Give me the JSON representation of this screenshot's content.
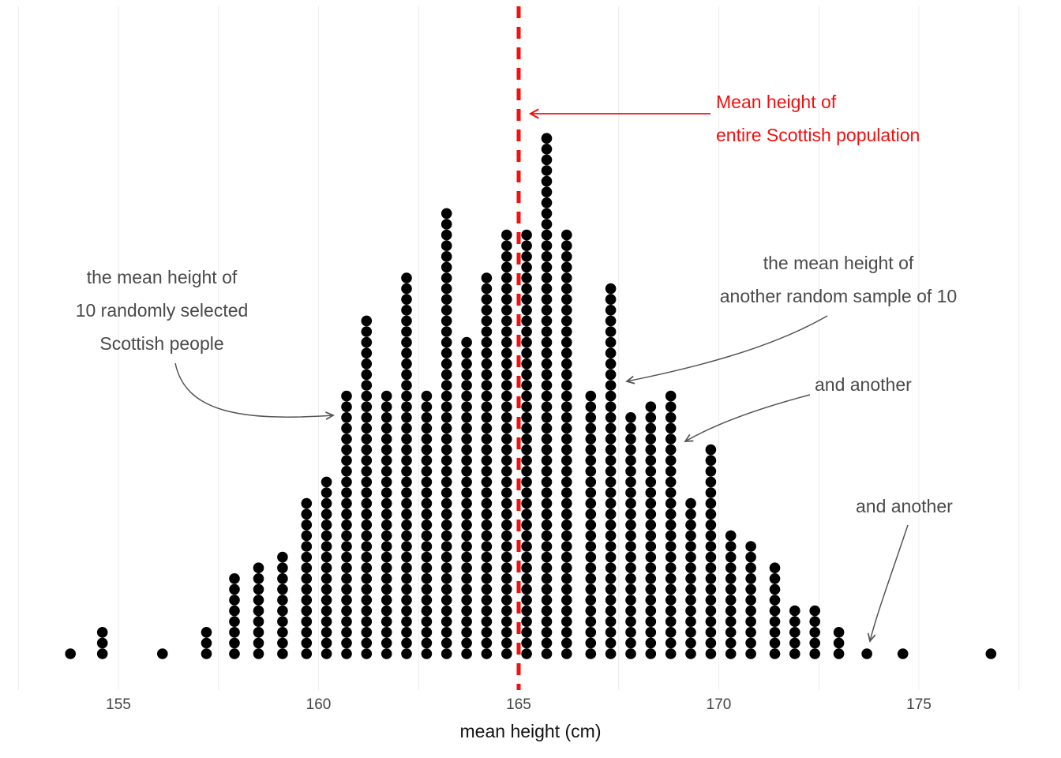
{
  "colors": {
    "dot": "#000000",
    "population_line": "#f50f0f",
    "annotation_text": "#4a4a4a",
    "annotation_arrow": "#555555",
    "gridline": "#ececec",
    "tick_label": "#444444",
    "axis_title": "#111111"
  },
  "chart_data": {
    "type": "dotplot",
    "title": "",
    "xlabel": "mean height (cm)",
    "ylabel": "",
    "x_ticks": [
      155,
      160,
      165,
      170,
      175
    ],
    "xlim": [
      153,
      177.5
    ],
    "population_mean": 165,
    "binwidth_cm": 0.5,
    "x_cm": [
      153.8,
      154.6,
      156.1,
      157.2,
      157.9,
      158.5,
      159.1,
      159.7,
      160.2,
      160.7,
      161.2,
      161.7,
      162.2,
      162.7,
      163.2,
      163.7,
      164.2,
      164.7,
      165.2,
      165.7,
      166.2,
      166.8,
      167.3,
      167.8,
      168.3,
      168.8,
      169.3,
      169.8,
      170.3,
      170.8,
      171.4,
      171.9,
      172.4,
      173.0,
      173.7,
      174.6,
      176.8
    ],
    "counts": [
      1,
      3,
      1,
      3,
      8,
      9,
      10,
      15,
      17,
      25,
      32,
      25,
      36,
      25,
      42,
      30,
      36,
      40,
      40,
      49,
      40,
      25,
      35,
      23,
      24,
      25,
      15,
      20,
      12,
      11,
      9,
      5,
      5,
      3,
      1,
      1,
      1
    ]
  },
  "annotations": {
    "sample1": {
      "lines": [
        "the mean height of",
        "10 randomly selected",
        "Scottish people"
      ]
    },
    "population": {
      "lines": [
        "Mean height of",
        "entire Scottish population"
      ]
    },
    "sample2": {
      "lines": [
        "the mean height of",
        "another random sample of 10"
      ]
    },
    "another1": {
      "label": "and another"
    },
    "another2": {
      "label": "and another"
    }
  }
}
